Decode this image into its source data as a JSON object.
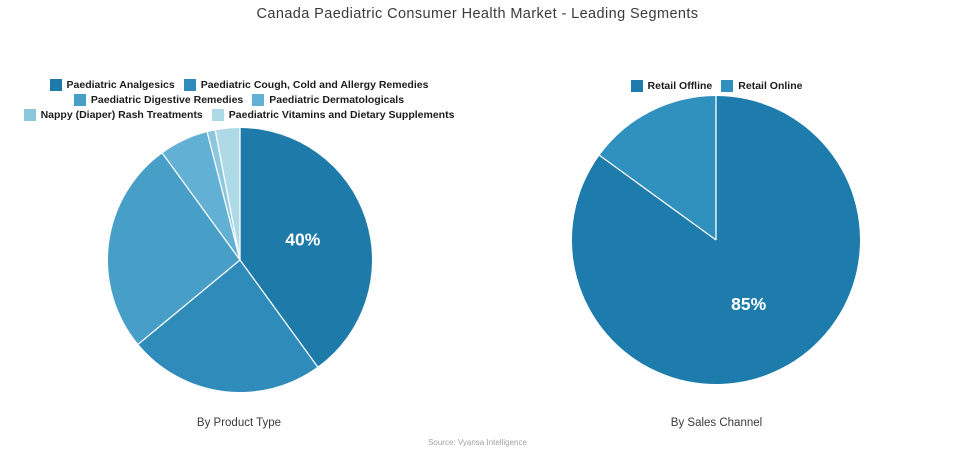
{
  "title": "Canada Paediatric Consumer Health Market - Leading Segments",
  "source": "Source: Vyansa Intelligence",
  "chart_data": [
    {
      "type": "pie",
      "title": "By Product Type",
      "categories": [
        "Paediatric Analgesics",
        "Paediatric Cough, Cold and Allergy Remedies",
        "Paediatric Digestive Remedies",
        "Paediatric Dermatologicals",
        "Nappy (Diaper) Rash Treatments",
        "Paediatric Vitamins and Dietary Supplements"
      ],
      "values": [
        40,
        24,
        26,
        6,
        1,
        3
      ],
      "shown_labels": [
        "40%",
        "",
        "",
        "",
        "",
        ""
      ],
      "colors": [
        "#1e7aa9",
        "#2f8cba",
        "#479fc8",
        "#63b0d5",
        "#8cc7de",
        "#aedae8"
      ],
      "legend_rows": [
        [
          0,
          1
        ],
        [
          2,
          3
        ],
        [
          4,
          5
        ]
      ],
      "legend_position": "top",
      "start_angle_deg": 0,
      "direction": "clockwise",
      "radius_px": 132,
      "label_r": 0.5
    },
    {
      "type": "pie",
      "title": "By Sales Channel",
      "categories": [
        "Retail Offline",
        "Retail Online"
      ],
      "values": [
        85,
        15
      ],
      "shown_labels": [
        "85%",
        ""
      ],
      "colors": [
        "#1d7cab",
        "#3090be"
      ],
      "legend_rows": [
        [
          0,
          1
        ]
      ],
      "legend_position": "top",
      "start_angle_deg": 0,
      "direction": "clockwise",
      "radius_px": 144,
      "label_r": 0.5
    }
  ]
}
